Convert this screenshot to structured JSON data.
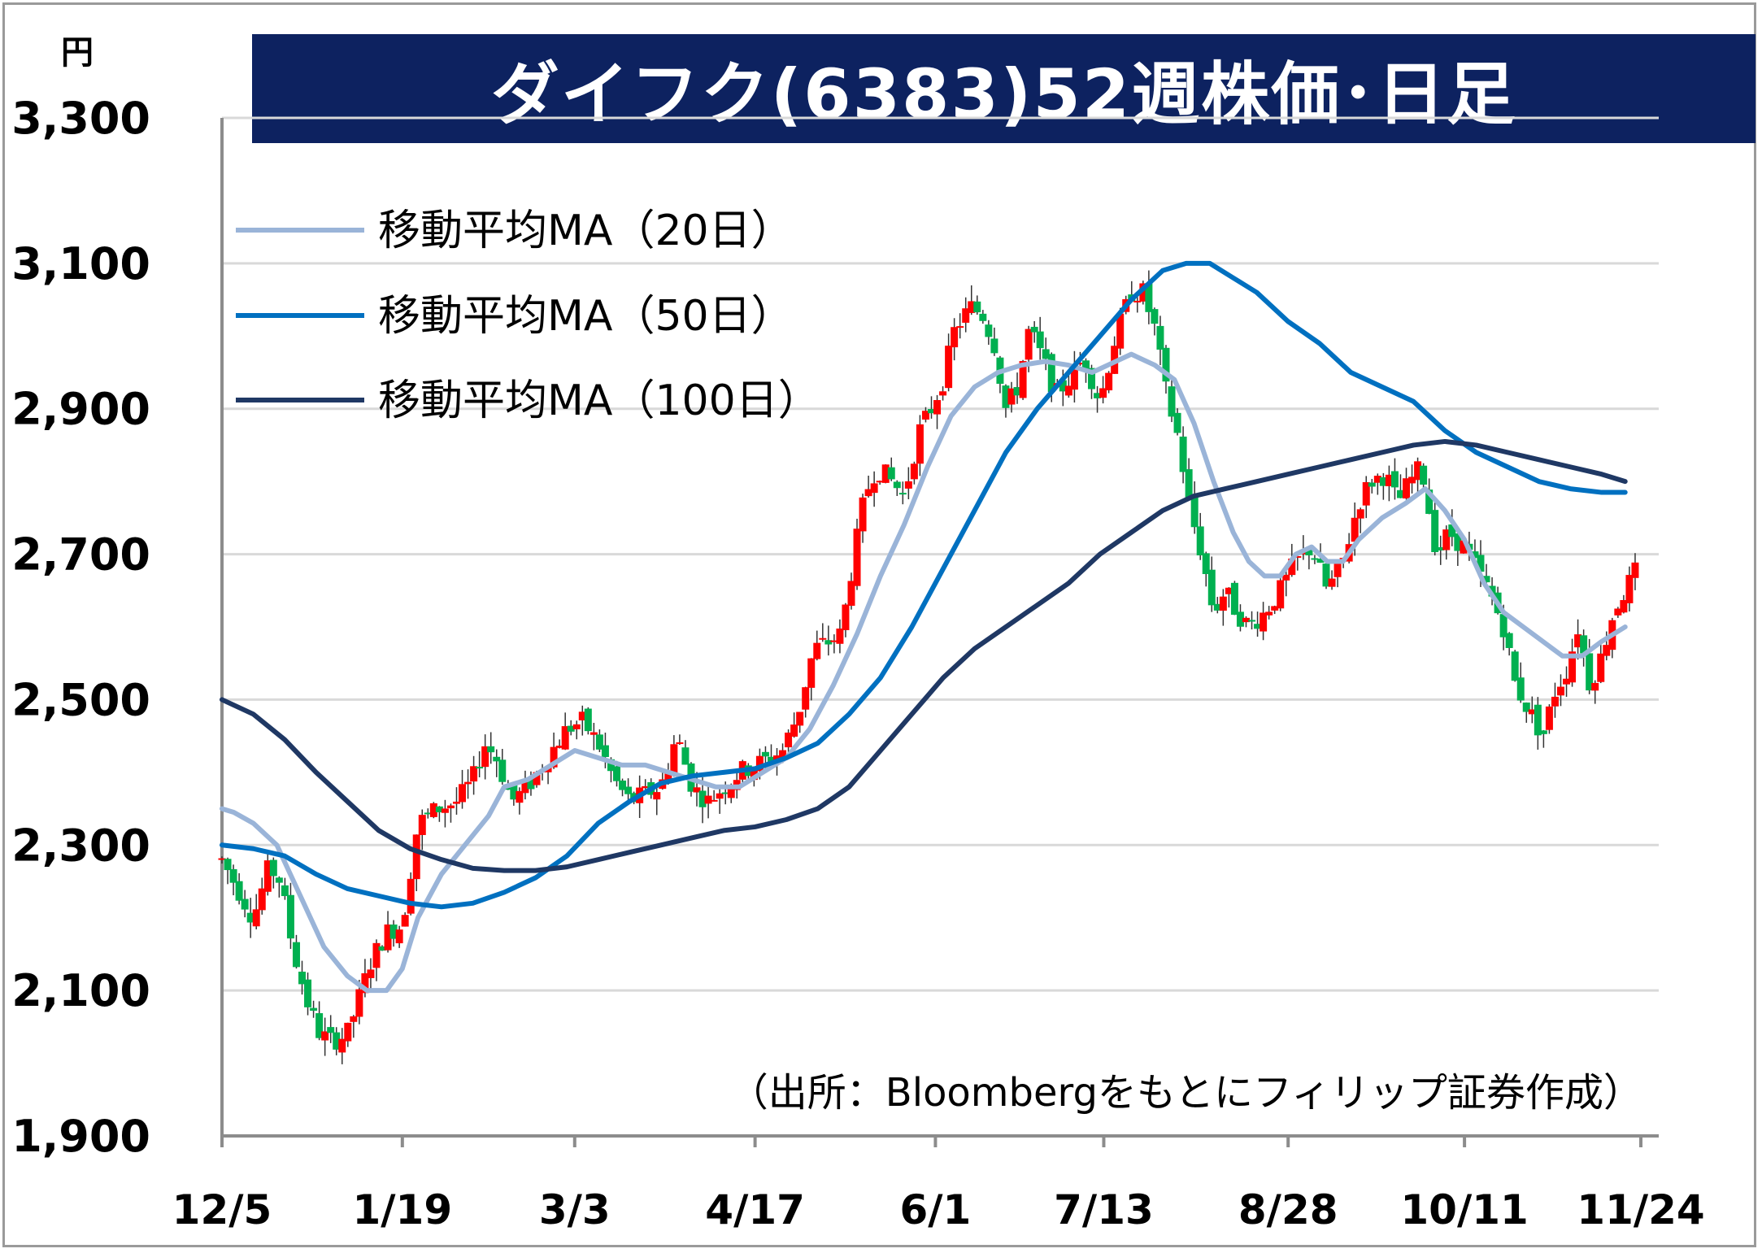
{
  "title": "ダイフク(6383)52週株価･日足",
  "unit": "円",
  "source_note": "（出所：Bloombergをもとにフィリップ証券作成）",
  "colors": {
    "title_bg": "#0d2260",
    "up": "#ff0000",
    "down": "#00b050",
    "ma20": "#9ab4d8",
    "ma50": "#0070c0",
    "ma100": "#1f3864",
    "grid": "#d9d9d9",
    "axis": "#8c8c8c"
  },
  "chart_data": {
    "type": "candlestick",
    "title": "ダイフク(6383)52週株価･日足",
    "ylabel": "円",
    "ylim": [
      1900,
      3300
    ],
    "yticks": [
      1900,
      2100,
      2300,
      2500,
      2700,
      2900,
      3100,
      3300
    ],
    "ytick_labels": [
      "1,900",
      "2,100",
      "2,300",
      "2,500",
      "2,700",
      "2,900",
      "3,100",
      "3,300"
    ],
    "xticks": [
      {
        "label": "12/5",
        "day": 0
      },
      {
        "label": "1/19",
        "day": 45
      },
      {
        "label": "3/3",
        "day": 88
      },
      {
        "label": "4/17",
        "day": 133
      },
      {
        "label": "6/1",
        "day": 178
      },
      {
        "label": "7/13",
        "day": 220
      },
      {
        "label": "8/28",
        "day": 266
      },
      {
        "label": "10/11",
        "day": 310
      },
      {
        "label": "11/24",
        "day": 354
      }
    ],
    "x_range_days": [
      0,
      354
    ],
    "grid": "horizontal",
    "legend_position": "top-left",
    "price_anchors": [
      [
        0,
        2280
      ],
      [
        5,
        2230
      ],
      [
        8,
        2200
      ],
      [
        12,
        2270
      ],
      [
        15,
        2250
      ],
      [
        18,
        2160
      ],
      [
        20,
        2120
      ],
      [
        22,
        2080
      ],
      [
        25,
        2040
      ],
      [
        28,
        2030
      ],
      [
        32,
        2040
      ],
      [
        35,
        2090
      ],
      [
        38,
        2140
      ],
      [
        42,
        2180
      ],
      [
        46,
        2190
      ],
      [
        50,
        2330
      ],
      [
        55,
        2350
      ],
      [
        60,
        2360
      ],
      [
        64,
        2390
      ],
      [
        67,
        2440
      ],
      [
        70,
        2420
      ],
      [
        74,
        2360
      ],
      [
        78,
        2380
      ],
      [
        83,
        2420
      ],
      [
        88,
        2460
      ],
      [
        92,
        2470
      ],
      [
        96,
        2440
      ],
      [
        100,
        2390
      ],
      [
        104,
        2360
      ],
      [
        108,
        2370
      ],
      [
        112,
        2380
      ],
      [
        116,
        2450
      ],
      [
        120,
        2380
      ],
      [
        124,
        2360
      ],
      [
        128,
        2380
      ],
      [
        132,
        2400
      ],
      [
        136,
        2410
      ],
      [
        140,
        2420
      ],
      [
        143,
        2430
      ],
      [
        147,
        2480
      ],
      [
        151,
        2570
      ],
      [
        155,
        2580
      ],
      [
        158,
        2590
      ],
      [
        161,
        2690
      ],
      [
        164,
        2780
      ],
      [
        167,
        2820
      ],
      [
        171,
        2800
      ],
      [
        174,
        2780
      ],
      [
        178,
        2870
      ],
      [
        181,
        2900
      ],
      [
        184,
        2940
      ],
      [
        187,
        3010
      ],
      [
        191,
        3040
      ],
      [
        194,
        3030
      ],
      [
        197,
        2990
      ],
      [
        200,
        2900
      ],
      [
        203,
        2930
      ],
      [
        206,
        3010
      ],
      [
        210,
        2960
      ],
      [
        213,
        2920
      ],
      [
        216,
        2940
      ],
      [
        220,
        2970
      ],
      [
        224,
        2910
      ],
      [
        228,
        3000
      ],
      [
        232,
        3060
      ],
      [
        235,
        3060
      ],
      [
        238,
        3010
      ],
      [
        241,
        2920
      ],
      [
        244,
        2860
      ],
      [
        247,
        2760
      ],
      [
        250,
        2700
      ],
      [
        253,
        2620
      ],
      [
        256,
        2650
      ],
      [
        259,
        2620
      ],
      [
        262,
        2600
      ],
      [
        266,
        2620
      ],
      [
        270,
        2650
      ],
      [
        274,
        2690
      ],
      [
        278,
        2710
      ],
      [
        282,
        2650
      ],
      [
        286,
        2690
      ],
      [
        290,
        2770
      ],
      [
        293,
        2800
      ],
      [
        297,
        2810
      ],
      [
        300,
        2770
      ],
      [
        303,
        2800
      ],
      [
        306,
        2820
      ],
      [
        310,
        2700
      ],
      [
        313,
        2730
      ],
      [
        317,
        2710
      ],
      [
        320,
        2680
      ],
      [
        324,
        2640
      ],
      [
        327,
        2600
      ],
      [
        330,
        2520
      ],
      [
        334,
        2480
      ],
      [
        337,
        2450
      ],
      [
        340,
        2510
      ],
      [
        343,
        2540
      ],
      [
        346,
        2600
      ],
      [
        349,
        2520
      ],
      [
        352,
        2560
      ],
      [
        355,
        2620
      ],
      [
        358,
        2650
      ],
      [
        362,
        2690
      ]
    ],
    "series": [
      {
        "name": "移動平均MA（20日）",
        "points": [
          [
            0,
            2350
          ],
          [
            3,
            2345
          ],
          [
            8,
            2330
          ],
          [
            14,
            2300
          ],
          [
            20,
            2230
          ],
          [
            26,
            2160
          ],
          [
            32,
            2120
          ],
          [
            37,
            2100
          ],
          [
            42,
            2100
          ],
          [
            46,
            2130
          ],
          [
            50,
            2200
          ],
          [
            56,
            2260
          ],
          [
            62,
            2300
          ],
          [
            68,
            2340
          ],
          [
            72,
            2380
          ],
          [
            78,
            2390
          ],
          [
            84,
            2410
          ],
          [
            90,
            2430
          ],
          [
            96,
            2420
          ],
          [
            102,
            2410
          ],
          [
            108,
            2410
          ],
          [
            114,
            2400
          ],
          [
            120,
            2390
          ],
          [
            126,
            2380
          ],
          [
            132,
            2380
          ],
          [
            138,
            2400
          ],
          [
            144,
            2420
          ],
          [
            150,
            2460
          ],
          [
            156,
            2520
          ],
          [
            162,
            2590
          ],
          [
            168,
            2670
          ],
          [
            174,
            2740
          ],
          [
            180,
            2820
          ],
          [
            186,
            2890
          ],
          [
            192,
            2930
          ],
          [
            198,
            2950
          ],
          [
            204,
            2960
          ],
          [
            210,
            2965
          ],
          [
            216,
            2960
          ],
          [
            222,
            2950
          ],
          [
            226,
            2960
          ],
          [
            232,
            2975
          ],
          [
            238,
            2960
          ],
          [
            243,
            2940
          ],
          [
            248,
            2880
          ],
          [
            253,
            2800
          ],
          [
            258,
            2730
          ],
          [
            262,
            2690
          ],
          [
            266,
            2670
          ],
          [
            270,
            2670
          ],
          [
            274,
            2700
          ],
          [
            278,
            2710
          ],
          [
            282,
            2690
          ],
          [
            286,
            2690
          ],
          [
            290,
            2720
          ],
          [
            296,
            2750
          ],
          [
            302,
            2770
          ],
          [
            307,
            2790
          ],
          [
            312,
            2760
          ],
          [
            317,
            2720
          ],
          [
            322,
            2660
          ],
          [
            327,
            2620
          ],
          [
            332,
            2600
          ],
          [
            337,
            2580
          ],
          [
            342,
            2560
          ],
          [
            347,
            2560
          ],
          [
            352,
            2580
          ],
          [
            358,
            2600
          ]
        ]
      },
      {
        "name": "移動平均MA（50日）",
        "points": [
          [
            0,
            2300
          ],
          [
            8,
            2295
          ],
          [
            16,
            2285
          ],
          [
            24,
            2260
          ],
          [
            32,
            2240
          ],
          [
            40,
            2230
          ],
          [
            48,
            2220
          ],
          [
            56,
            2215
          ],
          [
            64,
            2220
          ],
          [
            72,
            2235
          ],
          [
            80,
            2255
          ],
          [
            88,
            2285
          ],
          [
            96,
            2330
          ],
          [
            104,
            2360
          ],
          [
            112,
            2385
          ],
          [
            120,
            2395
          ],
          [
            128,
            2400
          ],
          [
            136,
            2405
          ],
          [
            144,
            2420
          ],
          [
            152,
            2440
          ],
          [
            160,
            2480
          ],
          [
            168,
            2530
          ],
          [
            176,
            2600
          ],
          [
            184,
            2680
          ],
          [
            192,
            2760
          ],
          [
            200,
            2840
          ],
          [
            208,
            2900
          ],
          [
            216,
            2950
          ],
          [
            224,
            3000
          ],
          [
            232,
            3050
          ],
          [
            240,
            3090
          ],
          [
            246,
            3100
          ],
          [
            252,
            3100
          ],
          [
            258,
            3080
          ],
          [
            264,
            3060
          ],
          [
            272,
            3020
          ],
          [
            280,
            2990
          ],
          [
            288,
            2950
          ],
          [
            296,
            2930
          ],
          [
            304,
            2910
          ],
          [
            312,
            2870
          ],
          [
            320,
            2840
          ],
          [
            328,
            2820
          ],
          [
            336,
            2800
          ],
          [
            344,
            2790
          ],
          [
            352,
            2785
          ],
          [
            358,
            2785
          ]
        ]
      },
      {
        "name": "移動平均MA（100日）",
        "points": [
          [
            0,
            2500
          ],
          [
            8,
            2480
          ],
          [
            16,
            2445
          ],
          [
            24,
            2400
          ],
          [
            32,
            2360
          ],
          [
            40,
            2320
          ],
          [
            48,
            2295
          ],
          [
            56,
            2280
          ],
          [
            64,
            2268
          ],
          [
            72,
            2265
          ],
          [
            80,
            2265
          ],
          [
            88,
            2270
          ],
          [
            96,
            2280
          ],
          [
            104,
            2290
          ],
          [
            112,
            2300
          ],
          [
            120,
            2310
          ],
          [
            128,
            2320
          ],
          [
            136,
            2325
          ],
          [
            144,
            2335
          ],
          [
            152,
            2350
          ],
          [
            160,
            2380
          ],
          [
            168,
            2430
          ],
          [
            176,
            2480
          ],
          [
            184,
            2530
          ],
          [
            192,
            2570
          ],
          [
            200,
            2600
          ],
          [
            208,
            2630
          ],
          [
            216,
            2660
          ],
          [
            224,
            2700
          ],
          [
            232,
            2730
          ],
          [
            240,
            2760
          ],
          [
            248,
            2780
          ],
          [
            256,
            2790
          ],
          [
            264,
            2800
          ],
          [
            272,
            2810
          ],
          [
            280,
            2820
          ],
          [
            288,
            2830
          ],
          [
            296,
            2840
          ],
          [
            304,
            2850
          ],
          [
            312,
            2855
          ],
          [
            320,
            2850
          ],
          [
            328,
            2840
          ],
          [
            336,
            2830
          ],
          [
            344,
            2820
          ],
          [
            352,
            2810
          ],
          [
            358,
            2800
          ]
        ]
      }
    ]
  }
}
